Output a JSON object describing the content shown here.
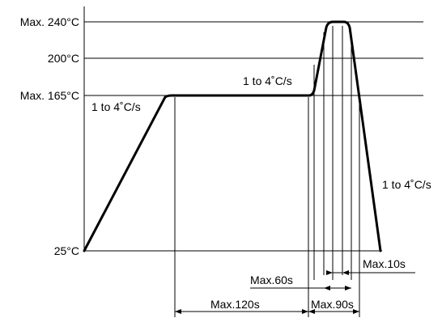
{
  "y_labels": {
    "max240": "Max. 240°C",
    "t200": "200°C",
    "max165": "Max. 165°C",
    "t25": "25°C"
  },
  "slope_labels": {
    "left": "1 to 4˚C/s",
    "middle": "1 to 4˚C/s",
    "right": "1 to 4˚C/s"
  },
  "durations": {
    "max10": "Max.10s",
    "max60": "Max.60s",
    "max120": "Max.120s",
    "max90": "Max.90s"
  }
}
